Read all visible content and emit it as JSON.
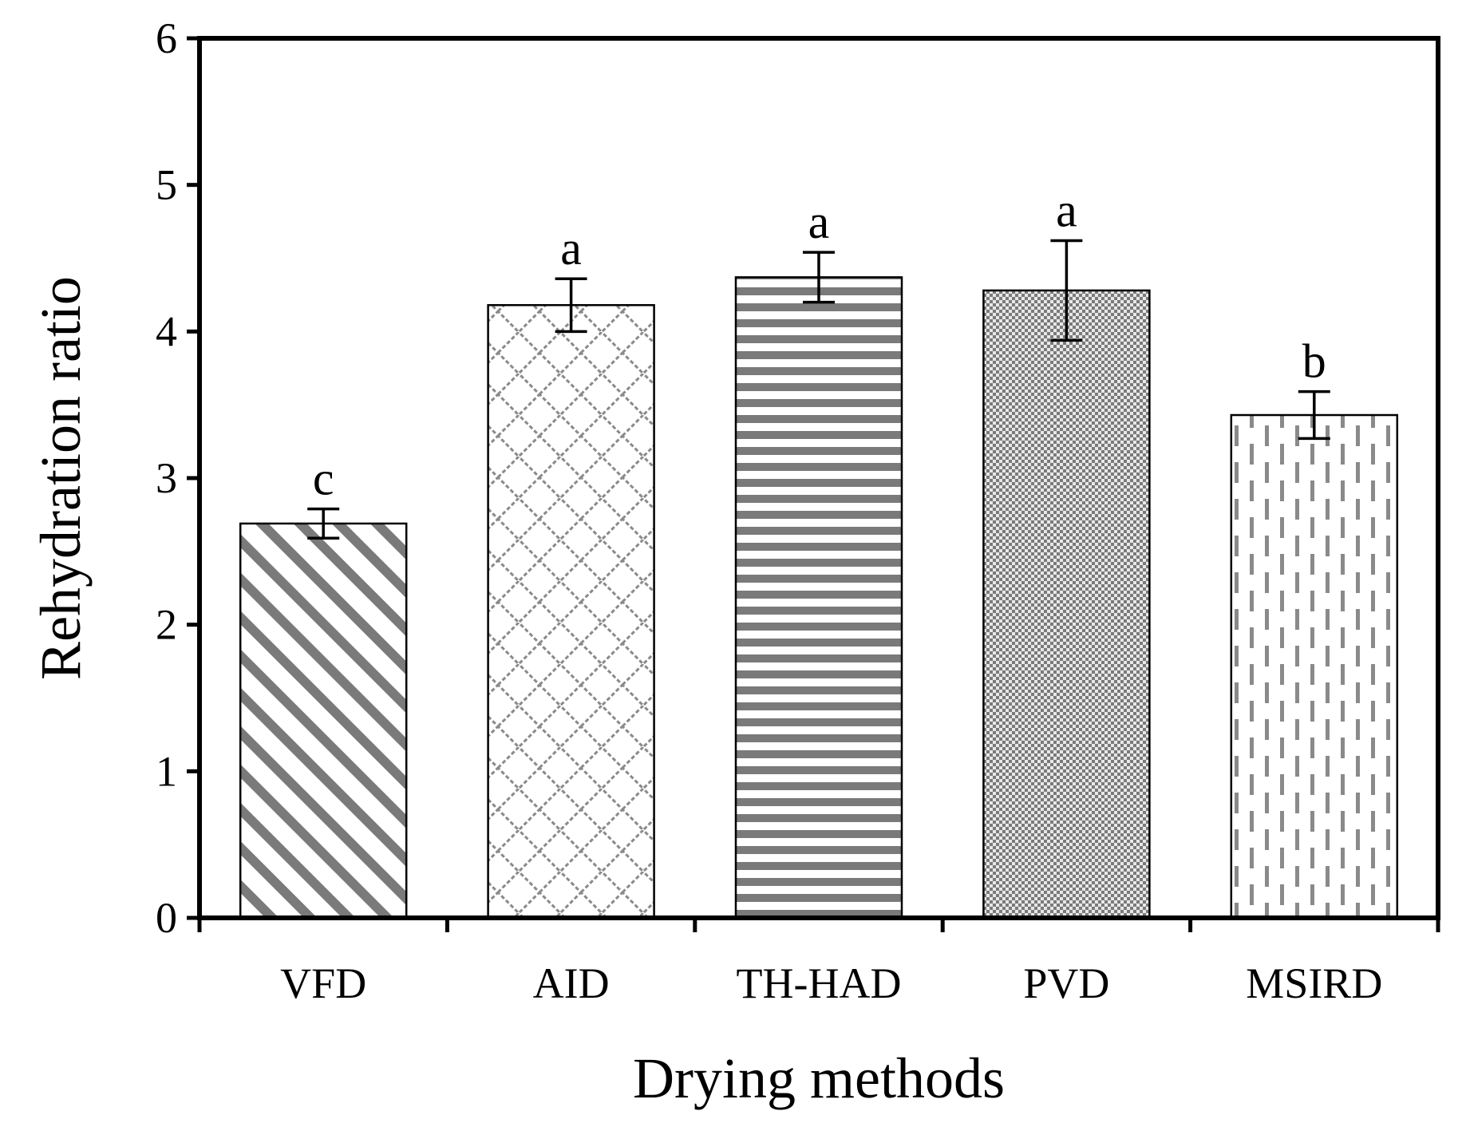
{
  "chart_data": {
    "type": "bar",
    "title": "",
    "xlabel": "Drying methods",
    "ylabel": "Rehydration ratio",
    "ylim": [
      0,
      6
    ],
    "yticks": [
      "0",
      "1",
      "2",
      "3",
      "4",
      "5",
      "6"
    ],
    "grid": false,
    "categories": [
      "VFD",
      "AID",
      "TH-HAD",
      "PVD",
      "MSIRD"
    ],
    "values": [
      2.69,
      4.18,
      4.37,
      4.28,
      3.43
    ],
    "errors": [
      0.1,
      0.18,
      0.17,
      0.34,
      0.16
    ],
    "letters": [
      "c",
      "a",
      "a",
      "a",
      "b"
    ],
    "patterns": [
      "diagonal-stripes",
      "diamond-lattice",
      "horizontal-stripes",
      "fine-checker",
      "vertical-dashes"
    ]
  },
  "colors": {
    "pattern_gray": "#7a7a7a",
    "axis": "#000000",
    "bar_bg": "#ffffff"
  }
}
